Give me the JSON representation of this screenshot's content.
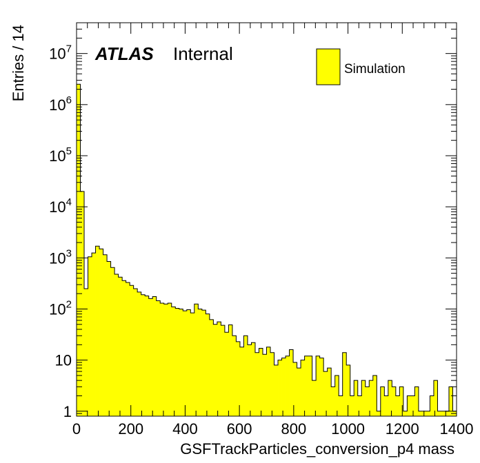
{
  "chart_data": {
    "type": "bar",
    "histogram": true,
    "xlabel": "GSFTrackParticles_conversion_p4 mass",
    "ylabel": "Entries / 14",
    "label_main": "ATLAS",
    "label_sub": "Internal",
    "xlim": [
      0,
      1400
    ],
    "ylim": [
      0.8,
      40000000
    ],
    "log_y": true,
    "bin_width": 14,
    "x_tick_labels": [
      "0",
      "200",
      "400",
      "600",
      "800",
      "1000",
      "1200",
      "1400"
    ],
    "y_tick_labels": [
      {
        "base": "1",
        "exp": ""
      },
      {
        "base": "10",
        "exp": ""
      },
      {
        "base": "10",
        "exp": "2"
      },
      {
        "base": "10",
        "exp": "3"
      },
      {
        "base": "10",
        "exp": "4"
      },
      {
        "base": "10",
        "exp": "5"
      },
      {
        "base": "10",
        "exp": "6"
      },
      {
        "base": "10",
        "exp": "7"
      }
    ],
    "legend_position": "top-right",
    "series": [
      {
        "name": "Simulation",
        "color": "#ffff00",
        "edge_color": "#000000",
        "values": [
          2500000,
          20000,
          250,
          1050,
          1250,
          1700,
          1500,
          1150,
          850,
          650,
          480,
          420,
          360,
          330,
          290,
          250,
          215,
          190,
          180,
          160,
          175,
          145,
          130,
          125,
          130,
          110,
          103,
          100,
          92,
          97,
          84,
          125,
          100,
          95,
          80,
          62,
          50,
          56,
          48,
          35,
          49,
          30,
          23,
          18,
          30,
          20,
          22,
          14,
          17,
          13,
          18,
          14,
          8,
          10,
          11,
          12,
          16,
          9,
          7,
          10,
          12,
          12,
          4,
          12,
          11,
          6,
          7,
          3,
          5,
          2,
          14,
          8,
          2,
          4,
          2,
          4,
          3,
          4,
          5,
          1,
          3,
          2,
          4,
          3,
          2,
          3,
          1,
          2,
          2,
          3,
          1,
          1,
          1,
          2,
          4,
          1,
          1,
          1,
          3,
          1
        ]
      }
    ]
  }
}
